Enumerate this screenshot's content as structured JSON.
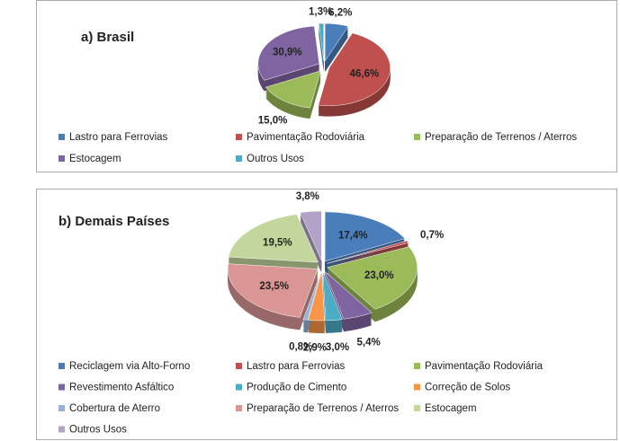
{
  "chart_data": [
    {
      "type": "pie",
      "title": "a) Brasil",
      "categories": [
        "Lastro para Ferrovias",
        "Pavimentação Rodoviária",
        "Preparação de Terrenos / Aterros",
        "Estocagem",
        "Outros Usos"
      ],
      "values": [
        6.2,
        46.6,
        15.0,
        30.9,
        1.3
      ],
      "value_labels": [
        "6,2%",
        "46,6%",
        "15,0%",
        "30,9%",
        "1,3%"
      ],
      "colors": [
        "#4a7ebb",
        "#c0504d",
        "#9bbb59",
        "#8064a2",
        "#4bacc6"
      ]
    },
    {
      "type": "pie",
      "title": "b) Demais Países",
      "categories": [
        "Reciclagem via Alto-Forno",
        "Lastro para Ferrovias",
        "Pavimentação Rodoviária",
        "Revestimento Asfáltico",
        "Produção de Cimento",
        "Correção de Solos",
        "Cobertura de Aterro",
        "Preparação de Terrenos / Aterros",
        "Estocagem",
        "Outros Usos"
      ],
      "values": [
        17.4,
        0.7,
        23.0,
        5.4,
        3.0,
        2.9,
        0.8,
        23.5,
        19.5,
        3.8
      ],
      "value_labels": [
        "17,4%",
        "0,7%",
        "23,0%",
        "5,4%",
        "3,0%",
        "2,9%",
        "0,8%",
        "23,5%",
        "19,5%",
        "3,8%"
      ],
      "colors": [
        "#4a7ebb",
        "#c0504d",
        "#9bbb59",
        "#8064a2",
        "#4bacc6",
        "#f79646",
        "#95b3d7",
        "#d99694",
        "#c3d69b",
        "#b3a2c7"
      ]
    }
  ]
}
